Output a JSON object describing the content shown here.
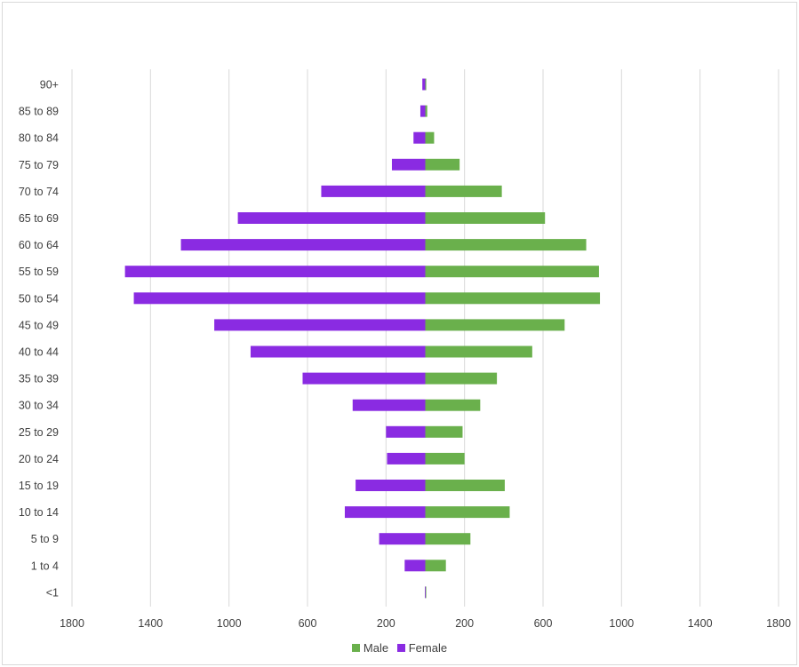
{
  "chart_data": {
    "type": "bar",
    "orientation": "horizontal",
    "layout": "population-pyramid",
    "title": "",
    "xlabel": "",
    "ylabel": "",
    "xlim": [
      -1800,
      1800
    ],
    "x_ticks": [
      -1800,
      -1400,
      -1000,
      -600,
      -200,
      200,
      600,
      1000,
      1400,
      1800
    ],
    "x_tick_labels": [
      "1800",
      "1400",
      "1000",
      "600",
      "200",
      "200",
      "600",
      "1000",
      "1400",
      "1800"
    ],
    "grid": true,
    "legend_position": "bottom",
    "categories": [
      "90+",
      "85 to 89",
      "80 to 84",
      "75 to 79",
      "70 to 74",
      "65 to 69",
      "60 to 64",
      "55 to 59",
      "50 to 54",
      "45 to 49",
      "40 to 44",
      "35 to 39",
      "30 to 34",
      "25 to 29",
      "20 to 24",
      "15 to 19",
      "10 to 14",
      "5 to 9",
      "1 to 4",
      "<1"
    ],
    "series": [
      {
        "name": "Male",
        "color": "#6ab04c",
        "values": [
          5,
          10,
          45,
          175,
          390,
          610,
          820,
          885,
          890,
          710,
          545,
          365,
          280,
          190,
          200,
          405,
          430,
          230,
          105,
          5
        ]
      },
      {
        "name": "Female",
        "color": "#8a2be2",
        "values": [
          -15,
          -25,
          -60,
          -170,
          -530,
          -955,
          -1245,
          -1530,
          -1485,
          -1075,
          -890,
          -625,
          -370,
          -200,
          -195,
          -355,
          -410,
          -235,
          -105,
          -2
        ]
      }
    ]
  }
}
